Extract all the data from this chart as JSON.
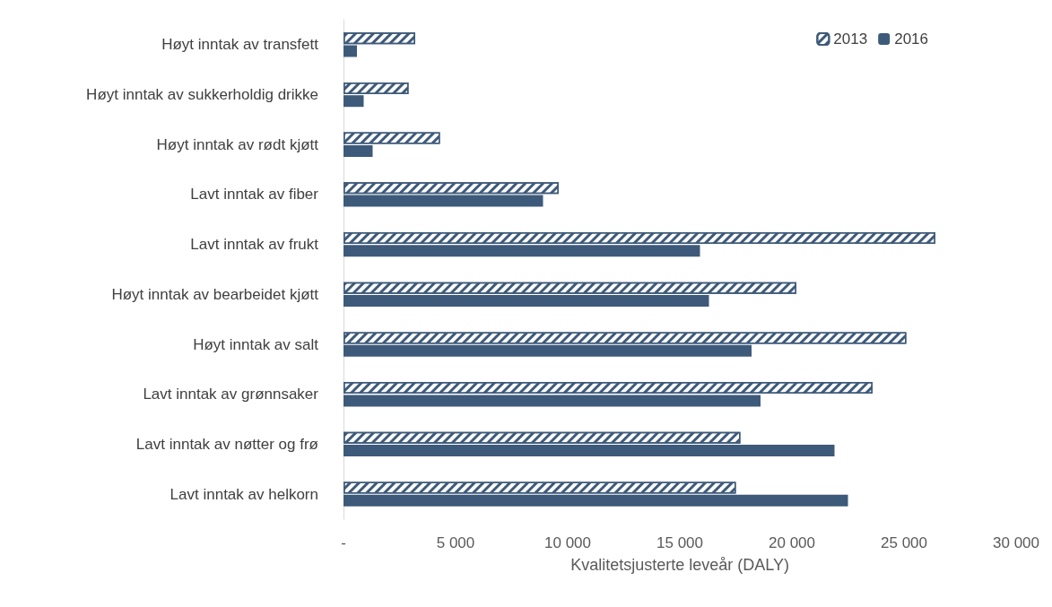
{
  "chart_data": {
    "type": "bar",
    "orientation": "horizontal",
    "xlabel": "Kvalitetsjusterte leveår (DALY)",
    "categories": [
      "Høyt inntak av transfett",
      "Høyt inntak av sukkerholdig drikke",
      "Høyt inntak av rødt kjøtt",
      "Lavt inntak av fiber",
      "Lavt inntak av frukt",
      "Høyt inntak av bearbeidet kjøtt",
      "Høyt inntak av salt",
      "Lavt inntak av grønnsaker",
      "Lavt inntak av nøtter og frø",
      "Lavt inntak av helkorn"
    ],
    "series": [
      {
        "name": "2013",
        "color": "#3e5a7a",
        "values": [
          3200,
          2900,
          4300,
          9600,
          26400,
          20200,
          25100,
          23600,
          17700,
          17500
        ]
      },
      {
        "name": "2016",
        "color": "#3e5a7a",
        "values": [
          600,
          900,
          1300,
          8900,
          15900,
          16300,
          18200,
          18600,
          21900,
          22500
        ]
      }
    ],
    "xlim": [
      0,
      30000
    ],
    "xticks": [
      {
        "value": 0,
        "label": "-"
      },
      {
        "value": 5000,
        "label": "5 000"
      },
      {
        "value": 10000,
        "label": "10 000"
      },
      {
        "value": 15000,
        "label": "15 000"
      },
      {
        "value": 20000,
        "label": "20 000"
      },
      {
        "value": 25000,
        "label": "25 000"
      },
      {
        "value": 30000,
        "label": "30 000"
      }
    ],
    "grid": false,
    "legend": "top right"
  }
}
